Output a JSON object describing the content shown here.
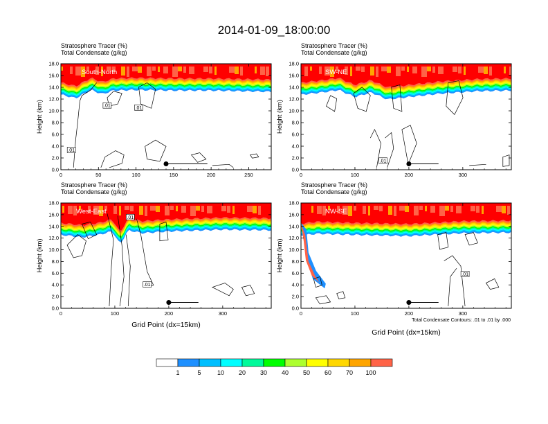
{
  "page_title": "2014-01-09_18:00:00",
  "contour_note": "Total Condensate Contours: .01 to .01 by .000",
  "colorbar": {
    "labels": [
      "1",
      "5",
      "10",
      "20",
      "30",
      "40",
      "50",
      "60",
      "70",
      "100"
    ],
    "colors": [
      "#ffffff",
      "#1e90ff",
      "#00bfff",
      "#00ffff",
      "#00fa9a",
      "#00ff00",
      "#adff2f",
      "#ffff00",
      "#ffd700",
      "#ffa500",
      "#ff6347",
      "#ff0000"
    ]
  },
  "chart_data": [
    {
      "type": "heatmap",
      "title_line1": "Stratosphere Tracer   (%)",
      "title_line2": "Total Condensate   (g/kg)",
      "section_label": "South-North",
      "ylabel": "Height (km)",
      "xlabel": "",
      "xlim": [
        0,
        280
      ],
      "ylim": [
        0,
        18
      ],
      "xticks": [
        "0",
        "50",
        "100",
        "150",
        "200",
        "250"
      ],
      "yticks": [
        "0.0",
        "2.0",
        "4.0",
        "6.0",
        "8.0",
        "10.0",
        "12.0",
        "14.0",
        "16.0",
        "18.0"
      ],
      "tropopause_km": [
        [
          0,
          14.8
        ],
        [
          20,
          14.2
        ],
        [
          40,
          15.6
        ],
        [
          55,
          14.9
        ],
        [
          70,
          15.5
        ],
        [
          100,
          15.6
        ],
        [
          150,
          15.5
        ],
        [
          200,
          15.5
        ],
        [
          280,
          15.3
        ]
      ],
      "contour_labels": [
        ".01",
        ".01",
        ".01"
      ],
      "dot": {
        "x": 140,
        "y": 1.0
      }
    },
    {
      "type": "heatmap",
      "title_line1": "Stratosphere Tracer   (%)",
      "title_line2": "Total Condensate   (g/kg)",
      "section_label": "SW-NE",
      "ylabel": "Height (km)",
      "xlabel": "",
      "xlim": [
        0,
        390
      ],
      "ylim": [
        0,
        18
      ],
      "xticks": [
        "0",
        "100",
        "200",
        "300"
      ],
      "yticks": [
        "0.0",
        "2.0",
        "4.0",
        "6.0",
        "8.0",
        "10.0",
        "12.0",
        "14.0",
        "16.0",
        "18.0"
      ],
      "tropopause_km": [
        [
          0,
          14.8
        ],
        [
          40,
          15.2
        ],
        [
          70,
          15.6
        ],
        [
          100,
          14.4
        ],
        [
          130,
          15.2
        ],
        [
          160,
          14.0
        ],
        [
          200,
          14.4
        ],
        [
          260,
          15.0
        ],
        [
          330,
          15.4
        ],
        [
          390,
          15.5
        ]
      ],
      "contour_labels": [
        ".01"
      ],
      "dot": {
        "x": 200,
        "y": 1.0
      }
    },
    {
      "type": "heatmap",
      "title_line1": "Stratosphere Tracer   (%)",
      "title_line2": "Total Condensate   (g/kg)",
      "section_label": "West-East",
      "ylabel": "Height (km)",
      "xlabel": "Grid Point (dx=15km)",
      "xlim": [
        0,
        390
      ],
      "ylim": [
        0,
        18
      ],
      "xticks": [
        "0",
        "100",
        "200",
        "300"
      ],
      "yticks": [
        "0.0",
        "2.0",
        "4.0",
        "6.0",
        "8.0",
        "10.0",
        "12.0",
        "14.0",
        "16.0",
        "18.0"
      ],
      "tropopause_km": [
        [
          0,
          14.6
        ],
        [
          40,
          14.2
        ],
        [
          70,
          14.6
        ],
        [
          95,
          15.2
        ],
        [
          110,
          13.0
        ],
        [
          125,
          15.4
        ],
        [
          150,
          14.9
        ],
        [
          200,
          15.2
        ],
        [
          300,
          15.5
        ],
        [
          390,
          15.4
        ]
      ],
      "contour_labels": [
        ".01",
        ".01"
      ],
      "dot": {
        "x": 200,
        "y": 1.0
      }
    },
    {
      "type": "heatmap",
      "title_line1": "Stratosphere Tracer   (%)",
      "title_line2": "Total Condensate   (g/kg)",
      "section_label": "NW-SE",
      "ylabel": "Height (km)",
      "xlabel": "Grid Point (dx=15km)",
      "xlim": [
        0,
        390
      ],
      "ylim": [
        0,
        18
      ],
      "xticks": [
        "0",
        "100",
        "200",
        "300"
      ],
      "yticks": [
        "0.0",
        "2.0",
        "4.0",
        "6.0",
        "8.0",
        "10.0",
        "12.0",
        "14.0",
        "16.0",
        "18.0"
      ],
      "tropopause_km": [
        [
          0,
          14.5
        ],
        [
          30,
          14.8
        ],
        [
          100,
          14.6
        ],
        [
          200,
          14.4
        ],
        [
          300,
          14.9
        ],
        [
          390,
          15.0
        ]
      ],
      "contour_labels": [
        ".01"
      ],
      "dot": {
        "x": 200,
        "y": 1.0
      }
    }
  ]
}
